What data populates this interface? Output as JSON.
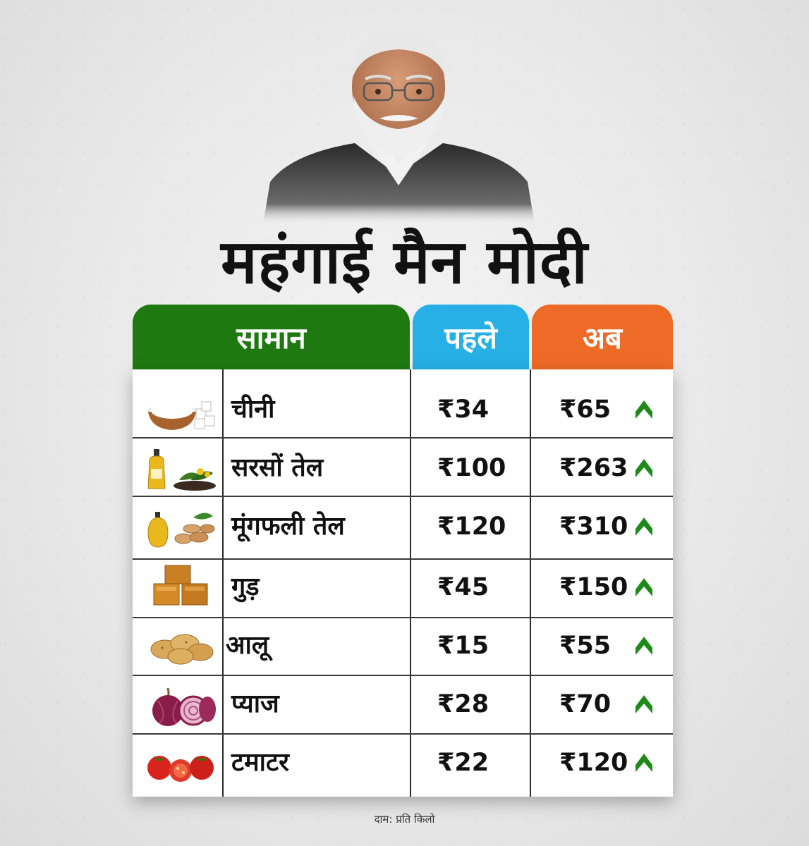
{
  "headline": "महंगाई मैन मोदी",
  "table": {
    "headers": {
      "item": "सामान",
      "before": "पहले",
      "now": "अब"
    },
    "rows": [
      {
        "icon": "sugar-icon",
        "name": "चीनी",
        "before": "₹34",
        "now": "₹65",
        "trend": "up"
      },
      {
        "icon": "mustard-oil-icon",
        "name": "सरसों तेल",
        "before": "₹100",
        "now": "₹263",
        "trend": "up"
      },
      {
        "icon": "groundnut-oil-icon",
        "name": "मूंगफली तेल",
        "before": "₹120",
        "now": "₹310",
        "trend": "up"
      },
      {
        "icon": "jaggery-icon",
        "name": "गुड़",
        "before": "₹45",
        "now": "₹150",
        "trend": "up"
      },
      {
        "icon": "potato-icon",
        "name": "आलू",
        "before": "₹15",
        "now": "₹55",
        "trend": "up"
      },
      {
        "icon": "onion-icon",
        "name": "प्याज",
        "before": "₹28",
        "now": "₹70",
        "trend": "up"
      },
      {
        "icon": "tomato-icon",
        "name": "टमाटर",
        "before": "₹22",
        "now": "₹120",
        "trend": "up"
      }
    ]
  },
  "footnote": "दाम: प्रति किलो",
  "colors": {
    "item_header": "#1e7a10",
    "before_header": "#26b0e6",
    "now_header": "#ee6a27",
    "trend_arrow": "#1e8a1a"
  }
}
